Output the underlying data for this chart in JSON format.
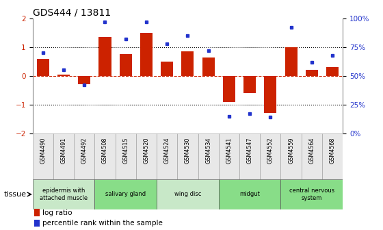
{
  "title": "GDS444 / 13811",
  "samples": [
    "GSM4490",
    "GSM4491",
    "GSM4492",
    "GSM4508",
    "GSM4515",
    "GSM4520",
    "GSM4524",
    "GSM4530",
    "GSM4534",
    "GSM4541",
    "GSM4547",
    "GSM4552",
    "GSM4559",
    "GSM4564",
    "GSM4568"
  ],
  "log_ratio": [
    0.6,
    0.05,
    -0.3,
    1.35,
    0.75,
    1.5,
    0.5,
    0.85,
    0.65,
    -0.9,
    -0.6,
    -1.3,
    1.0,
    0.2,
    0.3
  ],
  "percentile": [
    70,
    55,
    42,
    97,
    82,
    97,
    78,
    85,
    72,
    15,
    17,
    14,
    92,
    62,
    68
  ],
  "ylim": [
    -2,
    2
  ],
  "yticks_left": [
    -2,
    -1,
    0,
    1,
    2
  ],
  "bar_color": "#cc2200",
  "dot_color": "#2233cc",
  "background_color": "#ffffff",
  "tissue_groups": [
    {
      "label": "epidermis with\nattached muscle",
      "start": 0,
      "end": 3,
      "color": "#c8e8c8"
    },
    {
      "label": "salivary gland",
      "start": 3,
      "end": 6,
      "color": "#88dd88"
    },
    {
      "label": "wing disc",
      "start": 6,
      "end": 9,
      "color": "#c8e8c8"
    },
    {
      "label": "midgut",
      "start": 9,
      "end": 12,
      "color": "#88dd88"
    },
    {
      "label": "central nervous\nsystem",
      "start": 12,
      "end": 15,
      "color": "#88dd88"
    }
  ],
  "xlabel_tissue": "tissue",
  "legend_log_ratio": "log ratio",
  "legend_percentile": "percentile rank within the sample",
  "dotted_lines": [
    -1,
    1
  ],
  "zero_line_color": "#cc2200",
  "dotted_line_color": "#000000"
}
